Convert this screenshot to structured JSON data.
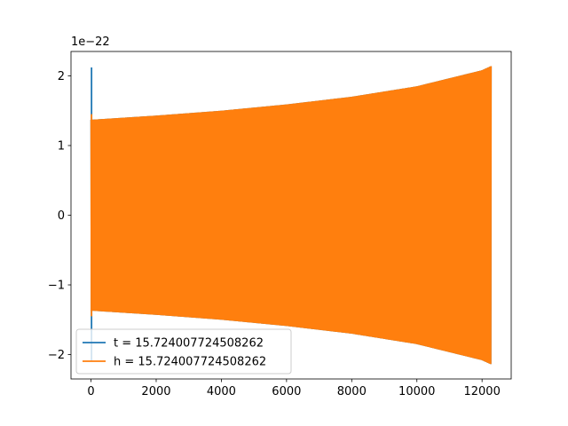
{
  "chart_data": {
    "type": "line",
    "title": "",
    "xlabel": "",
    "ylabel": "",
    "xlim": [
      -614,
      12894
    ],
    "ylim": [
      -2.35,
      2.35
    ],
    "y_offset_label": "1e−22",
    "x_ticks": [
      0,
      2000,
      4000,
      6000,
      8000,
      10000,
      12000
    ],
    "x_tick_labels": [
      "0",
      "2000",
      "4000",
      "6000",
      "8000",
      "10000",
      "12000"
    ],
    "y_ticks": [
      -2,
      -1,
      0,
      1,
      2
    ],
    "y_tick_labels": [
      "−2",
      "−1",
      "0",
      "1",
      "2"
    ],
    "grid": false,
    "legend_position": "lower-left",
    "series": [
      {
        "name": "t = 15.724007724508262",
        "color": "#1f77b4",
        "kind": "oscillation",
        "x_range": [
          0,
          12280
        ],
        "start_spike": [
          -2.1,
          2.12
        ],
        "envelope": [
          [
            0,
            1.37
          ],
          [
            2000,
            1.43
          ],
          [
            4000,
            1.5
          ],
          [
            6000,
            1.59
          ],
          [
            8000,
            1.7
          ],
          [
            10000,
            1.85
          ],
          [
            12000,
            2.08
          ],
          [
            12280,
            2.14
          ]
        ]
      },
      {
        "name": "h = 15.724007724508262",
        "color": "#ff7f0e",
        "kind": "oscillation",
        "x_range": [
          0,
          12280
        ],
        "start_spike": [
          -1.45,
          1.45
        ],
        "envelope": [
          [
            0,
            1.37
          ],
          [
            2000,
            1.43
          ],
          [
            4000,
            1.5
          ],
          [
            6000,
            1.59
          ],
          [
            8000,
            1.7
          ],
          [
            10000,
            1.85
          ],
          [
            12000,
            2.08
          ],
          [
            12280,
            2.14
          ]
        ]
      }
    ]
  }
}
